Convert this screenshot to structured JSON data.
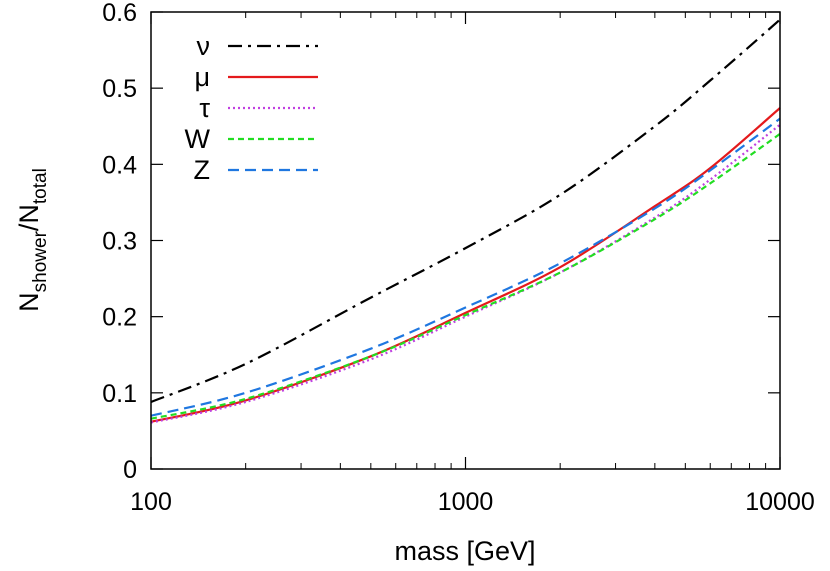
{
  "chart_data": {
    "type": "line",
    "xscale": "log",
    "xlim": [
      100,
      10000
    ],
    "ylim": [
      0,
      0.6
    ],
    "xlabel": "mass [GeV]",
    "ylabel": {
      "main": "N",
      "sub1": "shower",
      "sep": "/N",
      "sub2": "total"
    },
    "xticks": [
      100,
      1000,
      10000
    ],
    "xtick_labels": [
      "100",
      "1000",
      "10000"
    ],
    "yticks": [
      0,
      0.1,
      0.2,
      0.3,
      0.4,
      0.5,
      0.6
    ],
    "ytick_labels": [
      "0",
      "0.1",
      "0.2",
      "0.3",
      "0.4",
      "0.5",
      "0.6"
    ],
    "legend_position": "top-left",
    "grid": false,
    "x": [
      100,
      200,
      500,
      1000,
      2000,
      4000,
      6000,
      10000
    ],
    "series": [
      {
        "name": "ν",
        "color": "#000000",
        "dash": "dashdot",
        "values": [
          0.088,
          0.138,
          0.225,
          0.29,
          0.36,
          0.45,
          0.51,
          0.59
        ]
      },
      {
        "name": "μ",
        "color": "#e41a1c",
        "dash": "solid",
        "values": [
          0.062,
          0.09,
          0.148,
          0.205,
          0.265,
          0.345,
          0.395,
          0.474
        ]
      },
      {
        "name": "τ",
        "color": "#c040e0",
        "dash": "dotted",
        "values": [
          0.061,
          0.088,
          0.144,
          0.2,
          0.258,
          0.33,
          0.38,
          0.452
        ]
      },
      {
        "name": "W",
        "color": "#22dd22",
        "dash": "shortdash",
        "values": [
          0.066,
          0.092,
          0.148,
          0.202,
          0.258,
          0.328,
          0.375,
          0.44
        ]
      },
      {
        "name": "Z",
        "color": "#1f77e0",
        "dash": "dashed",
        "values": [
          0.07,
          0.1,
          0.158,
          0.212,
          0.27,
          0.342,
          0.392,
          0.46
        ]
      }
    ]
  }
}
